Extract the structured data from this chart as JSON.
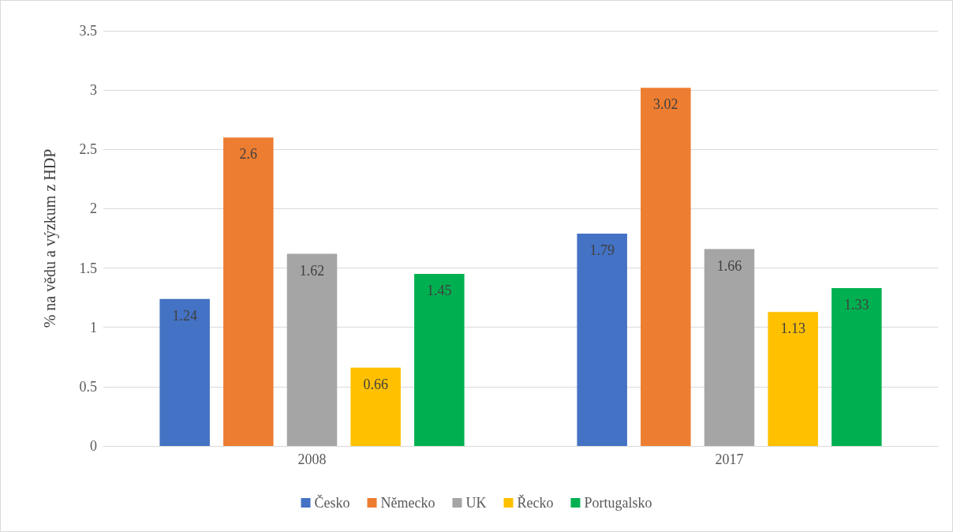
{
  "chart_data": {
    "type": "bar",
    "ylabel": "% na vědu a výzkum z HDP",
    "categories": [
      "2008",
      "2017"
    ],
    "series": [
      {
        "name": "Česko",
        "color": "#4472c4",
        "values": [
          1.24,
          1.79
        ]
      },
      {
        "name": "Německo",
        "color": "#ed7d31",
        "values": [
          2.6,
          3.02
        ]
      },
      {
        "name": "UK",
        "color": "#a5a5a5",
        "values": [
          1.62,
          1.66
        ]
      },
      {
        "name": "Řecko",
        "color": "#ffc000",
        "values": [
          0.66,
          1.13
        ]
      },
      {
        "name": "Portugalsko",
        "color": "#00b050",
        "values": [
          1.45,
          1.33
        ]
      }
    ],
    "ylim": [
      0,
      3.5
    ],
    "yticks": [
      0,
      0.5,
      1,
      1.5,
      2,
      2.5,
      3,
      3.5
    ],
    "grid": "y",
    "legend": "bottom",
    "data_labels": true
  }
}
